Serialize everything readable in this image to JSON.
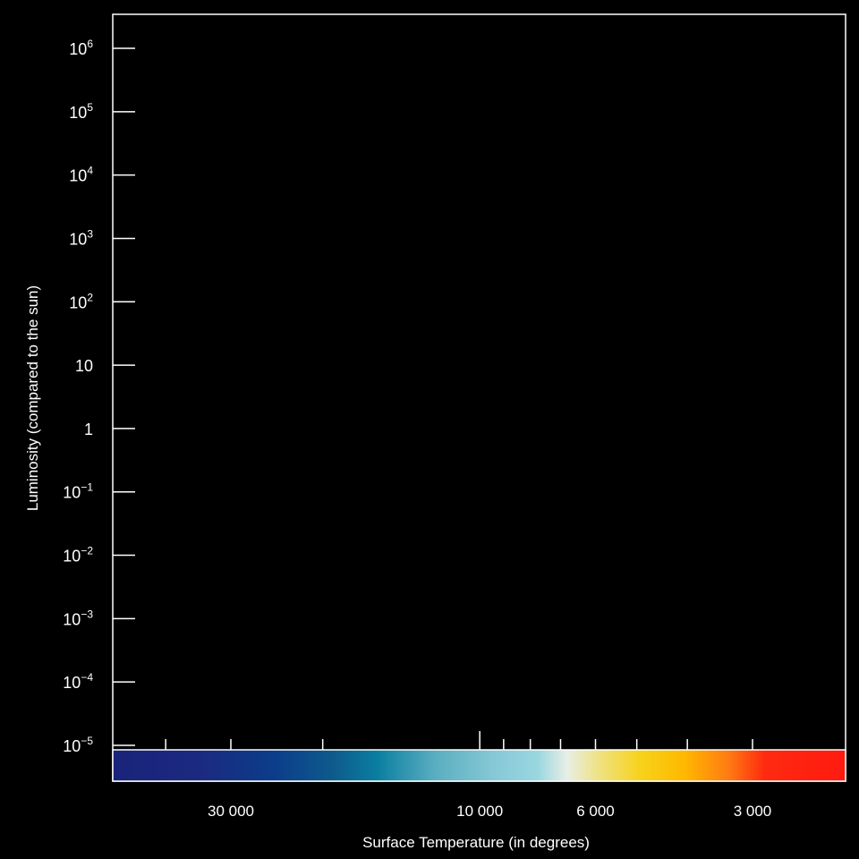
{
  "chart_data": {
    "type": "scatter",
    "title": "",
    "xlabel": "Surface Temperature (in degrees)",
    "ylabel": "Luminosity (compared to the sun)",
    "x_scale": "log-reversed",
    "y_scale": "log",
    "ylim": [
      1e-05,
      1000000
    ],
    "y_ticks": [
      {
        "value": 1000000,
        "base": "10",
        "exp": "6"
      },
      {
        "value": 100000,
        "base": "10",
        "exp": "5"
      },
      {
        "value": 10000,
        "base": "10",
        "exp": "4"
      },
      {
        "value": 1000,
        "base": "10",
        "exp": "3"
      },
      {
        "value": 100,
        "base": "10",
        "exp": "2"
      },
      {
        "value": 10,
        "base": "10",
        "exp": ""
      },
      {
        "value": 1,
        "base": "1",
        "exp": ""
      },
      {
        "value": 0.1,
        "base": "10",
        "exp": "−1"
      },
      {
        "value": 0.01,
        "base": "10",
        "exp": "−2"
      },
      {
        "value": 0.001,
        "base": "10",
        "exp": "−3"
      },
      {
        "value": 0.0001,
        "base": "10",
        "exp": "−4"
      },
      {
        "value": 1e-05,
        "base": "10",
        "exp": "−5"
      }
    ],
    "x_tick_labels": [
      {
        "value": 30000,
        "label": "30 000"
      },
      {
        "value": 10000,
        "label": "10 000"
      },
      {
        "value": 6000,
        "label": "6 000"
      },
      {
        "value": 3000,
        "label": "3 000"
      }
    ],
    "x_minor_ticks": [
      40000,
      20000,
      9000,
      8000,
      7000,
      5000,
      4000
    ],
    "series": [],
    "colorbar": {
      "stops": [
        {
          "offset": 0,
          "color": "#1a237a"
        },
        {
          "offset": 0.12,
          "color": "#1b2a80"
        },
        {
          "offset": 0.22,
          "color": "#0b3d8a"
        },
        {
          "offset": 0.3,
          "color": "#0e5a8c"
        },
        {
          "offset": 0.36,
          "color": "#0a7ea0"
        },
        {
          "offset": 0.44,
          "color": "#5aaec0"
        },
        {
          "offset": 0.52,
          "color": "#86c8d6"
        },
        {
          "offset": 0.58,
          "color": "#9ad7e0"
        },
        {
          "offset": 0.62,
          "color": "#e8eee6"
        },
        {
          "offset": 0.66,
          "color": "#eee38a"
        },
        {
          "offset": 0.72,
          "color": "#f7d21a"
        },
        {
          "offset": 0.78,
          "color": "#ffb800"
        },
        {
          "offset": 0.84,
          "color": "#ff7b12"
        },
        {
          "offset": 0.89,
          "color": "#ff2a10"
        },
        {
          "offset": 1,
          "color": "#ff1a10"
        }
      ]
    },
    "colors": {
      "background": "#000000",
      "frame": "#ffffff",
      "text": "#ffffff"
    }
  }
}
